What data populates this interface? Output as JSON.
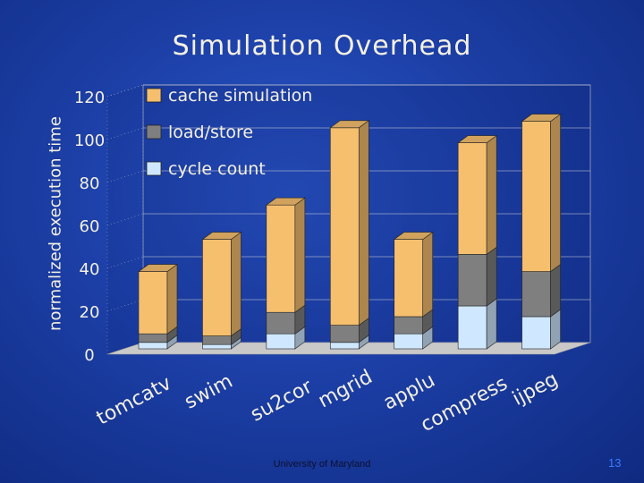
{
  "slide": {
    "footer": "University of Maryland",
    "page_number": "13"
  },
  "chart_data": {
    "type": "bar",
    "stacked": true,
    "title": "Simulation Overhead",
    "xlabel": "",
    "ylabel": "normalized execution time",
    "ylim": [
      0,
      120
    ],
    "yticks": [
      0,
      20,
      40,
      60,
      80,
      100,
      120
    ],
    "categories": [
      "tomcatv",
      "swim",
      "su2cor",
      "mgrid",
      "applu",
      "compress",
      "ijpeg"
    ],
    "series": [
      {
        "name": "cycle count",
        "color": "#cfe8ff",
        "values": [
          3,
          2,
          7,
          3,
          7,
          20,
          15
        ]
      },
      {
        "name": "load/store",
        "color": "#7f7f7f",
        "values": [
          4,
          4,
          10,
          8,
          8,
          24,
          21
        ]
      },
      {
        "name": "cache simulation",
        "color": "#f5bf6e",
        "values": [
          29,
          45,
          50,
          92,
          36,
          52,
          70
        ]
      }
    ],
    "legend": [
      "cache simulation",
      "load/store",
      "cycle count"
    ],
    "legend_position": "top-left"
  }
}
